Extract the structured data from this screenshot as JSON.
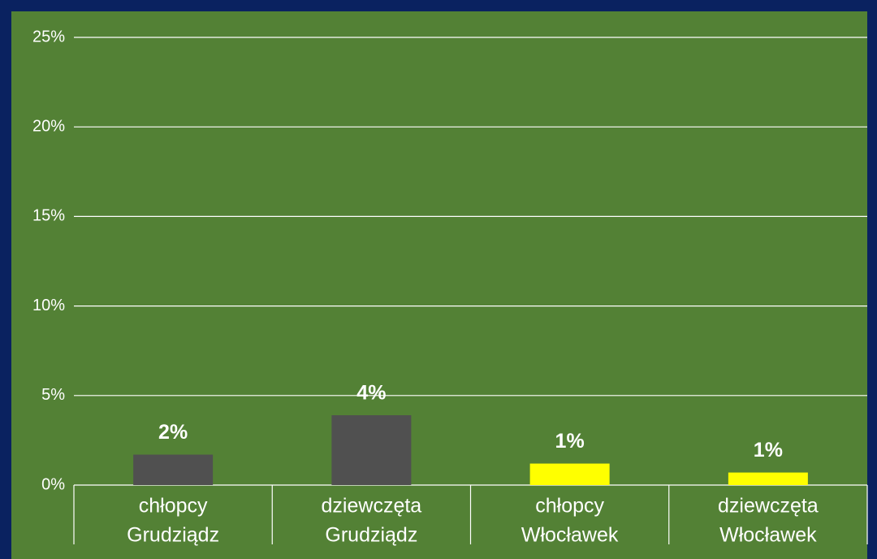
{
  "chart_data": {
    "type": "bar",
    "categories": [
      [
        "chłopcy",
        "Grudziądz"
      ],
      [
        "dziewczęta",
        "Grudziądz"
      ],
      [
        "chłopcy",
        "Włocławek"
      ],
      [
        "dziewczęta",
        "Włocławek"
      ]
    ],
    "values": [
      1.7,
      3.9,
      1.2,
      0.7
    ],
    "value_labels": [
      "2%",
      "4%",
      "1%",
      "1%"
    ],
    "colors": [
      "#505050",
      "#505050",
      "#ffff00",
      "#ffff00"
    ],
    "ylim": [
      0,
      25
    ],
    "yticks": [
      {
        "value": 0,
        "label": "0%"
      },
      {
        "value": 5,
        "label": "5%"
      },
      {
        "value": 10,
        "label": "10%"
      },
      {
        "value": 15,
        "label": "15%"
      },
      {
        "value": 20,
        "label": "20%"
      },
      {
        "value": 25,
        "label": "25%"
      }
    ],
    "grid": true
  }
}
